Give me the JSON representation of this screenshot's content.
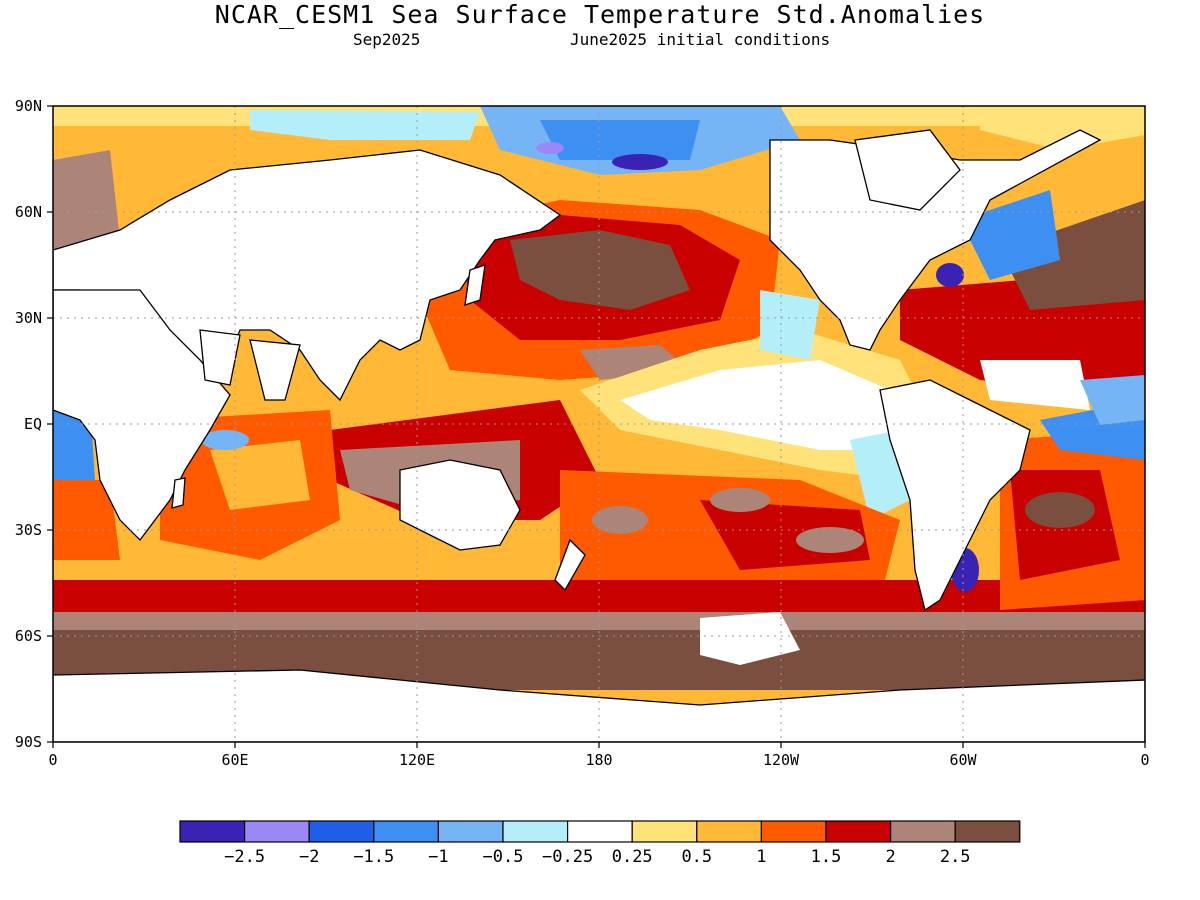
{
  "header": {
    "title": "NCAR_CESM1 Sea Surface Temperature Std.Anomalies",
    "valid_month": "Sep2025",
    "init": "June2025 initial conditions"
  },
  "axes": {
    "lat_labels": [
      "90N",
      "60N",
      "30N",
      "EQ",
      "30S",
      "60S",
      "90S"
    ],
    "lon_labels": [
      "0",
      "60E",
      "120E",
      "180",
      "120W",
      "60W",
      "0"
    ]
  },
  "legend": {
    "colors": [
      "#3a22b4",
      "#9b87f5",
      "#1f5ee6",
      "#3d8ff2",
      "#76b5f5",
      "#b4eef8",
      "#ffffff",
      "#ffe27a",
      "#ffb937",
      "#ff5a00",
      "#c80000",
      "#ad8478",
      "#7a4f40"
    ],
    "labels": [
      "-2.5",
      "-2",
      "-1.5",
      "-1",
      "-0.5",
      "-0.25",
      "0.25",
      "0.5",
      "1",
      "1.5",
      "2",
      "2.5"
    ]
  },
  "chart_data": {
    "type": "heatmap",
    "title": "NCAR_CESM1 Sea Surface Temperature Std.Anomalies",
    "subtitle": [
      "Sep2025",
      "June2025 initial conditions"
    ],
    "x_axis": [
      "0",
      "60E",
      "120E",
      "180",
      "120W",
      "60W",
      "0"
    ],
    "y_axis": [
      "90N",
      "60N",
      "30N",
      "EQ",
      "30S",
      "60S",
      "90S"
    ],
    "color_scale_breaks": [
      -2.5,
      -2,
      -1.5,
      -1,
      -0.5,
      -0.25,
      0.25,
      0.5,
      1,
      1.5,
      2,
      2.5
    ],
    "grid": true
  }
}
